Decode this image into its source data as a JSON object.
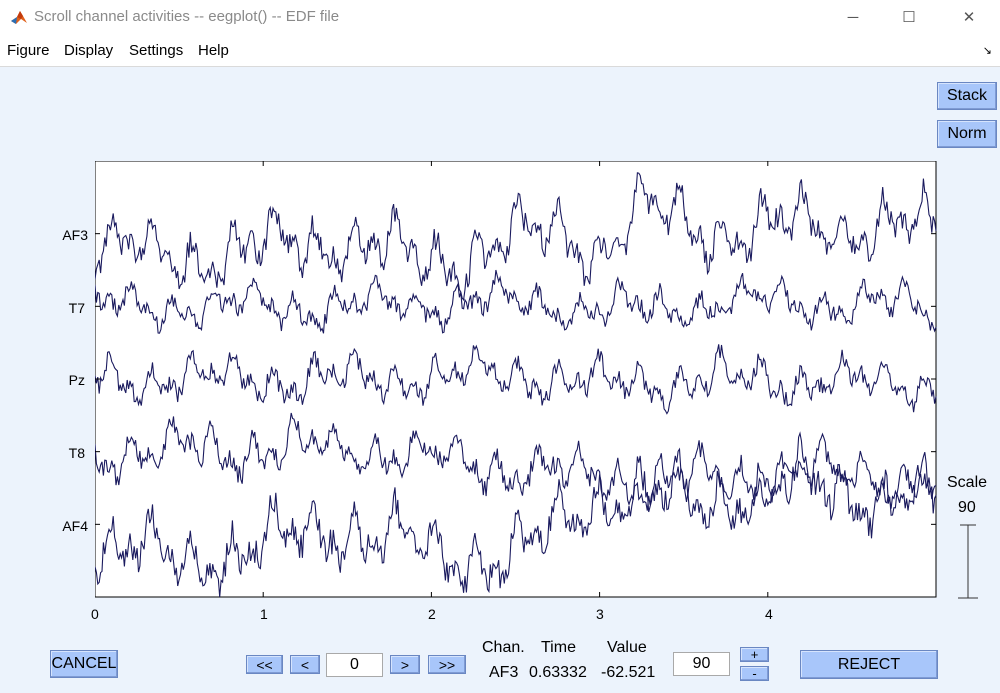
{
  "window": {
    "title": "Scroll channel activities -- eegplot() -- EDF file",
    "minimize_symbol": "─",
    "maximize_symbol": "☐",
    "close_symbol": "✕"
  },
  "menu": {
    "items": [
      "Figure",
      "Display",
      "Settings",
      "Help"
    ],
    "arrow_symbol": "↘"
  },
  "side_buttons": {
    "stack": "Stack",
    "norm": "Norm"
  },
  "scale": {
    "label": "Scale",
    "value": "90"
  },
  "chart_data": {
    "type": "line",
    "channels": [
      "AF3",
      "T7",
      "Pz",
      "T8",
      "AF4"
    ],
    "x_ticks": [
      "0",
      "1",
      "2",
      "3",
      "4"
    ],
    "xlim": [
      0,
      5
    ],
    "color": "#1a1a5e",
    "grid": false
  },
  "controls": {
    "cancel": "CANCEL",
    "first": "<<",
    "prev": "<",
    "position": "0",
    "next": ">",
    "last": ">>",
    "chan_header": "Chan.",
    "time_header": "Time",
    "value_header": "Value",
    "chan_value": "AF3",
    "time_value": "0.63332",
    "value_value": "-62.521",
    "spacing": "90",
    "plus": "+",
    "minus": "-",
    "reject": "REJECT"
  }
}
